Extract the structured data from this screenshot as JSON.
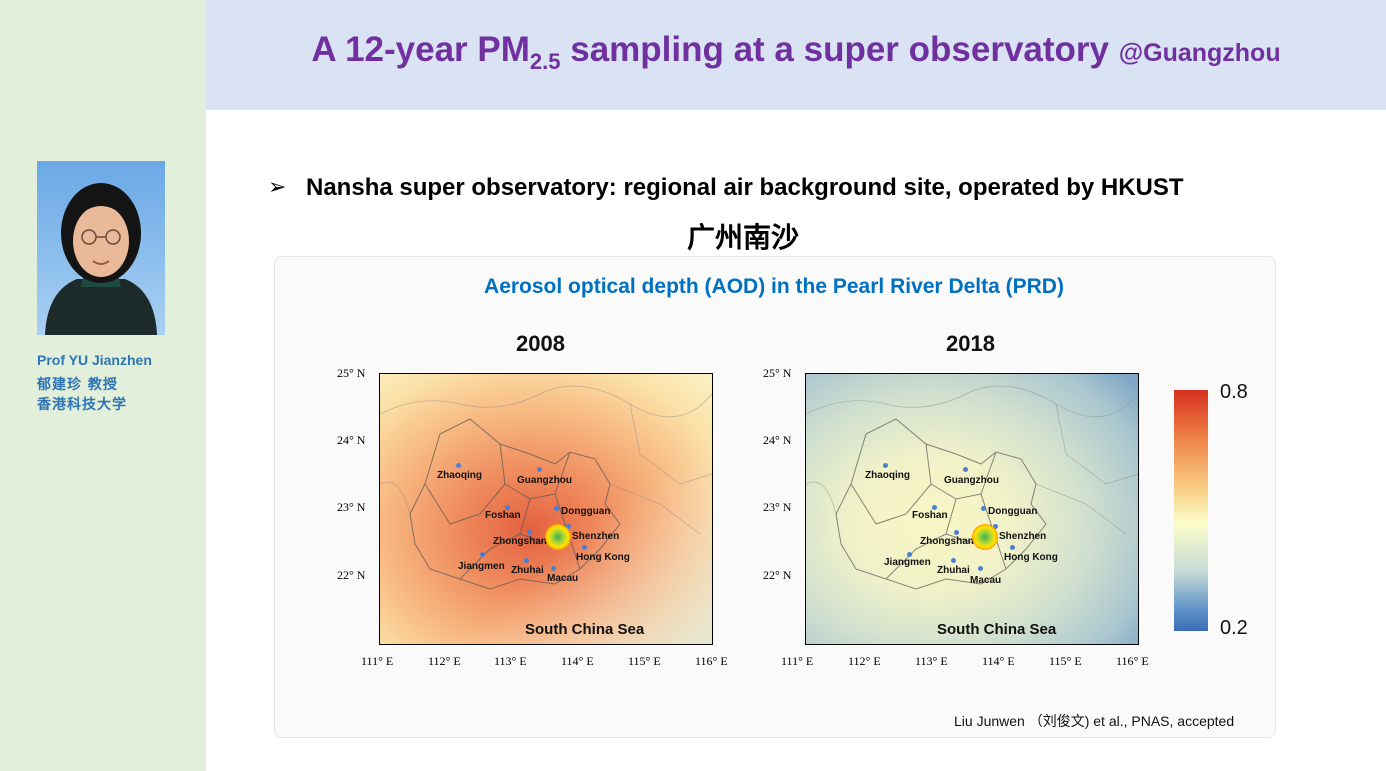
{
  "header": {
    "title_prefix": "A 12-year PM",
    "title_subscript": "2.5",
    "title_suffix": " sampling at a super observatory ",
    "title_location": "@Guangzhou"
  },
  "sidebar": {
    "name": "Prof YU Jianzhen",
    "name_cn": "郁建珍 教授",
    "university_cn": "香港科技大学"
  },
  "content": {
    "bullet_arrow": "➢",
    "bullet": "Nansha super observatory: regional air background site, operated by HKUST",
    "bullet_cn": "广州南沙",
    "figure_title": "Aerosol optical depth (AOD) in the Pearl River Delta (PRD)",
    "citation": "Liu Junwen （刘俊文) et al., PNAS, accepted"
  },
  "maps": [
    {
      "year": "2008"
    },
    {
      "year": "2018"
    }
  ],
  "y_ticks": [
    "25° N",
    "24° N",
    "23° N",
    "22° N"
  ],
  "x_ticks": [
    "111° E",
    "112° E",
    "113° E",
    "114° E",
    "115° E",
    "116° E"
  ],
  "cities": {
    "zhaoqing": "Zhaoqing",
    "guangzhou": "Guangzhou",
    "foshan": "Foshan",
    "dongguan": "Dongguan",
    "zhongshan": "Zhongshan",
    "shenzhen": "Shenzhen",
    "jiangmen": "Jiangmen",
    "zhuhai": "Zhuhai",
    "hongkong": "Hong Kong",
    "macau": "Macau"
  },
  "sea_label": "South China Sea",
  "colorbar": {
    "max": "0.8",
    "min": "0.2",
    "colors": [
      "#d7301f",
      "#fdfdc9",
      "#3a6db4"
    ]
  }
}
